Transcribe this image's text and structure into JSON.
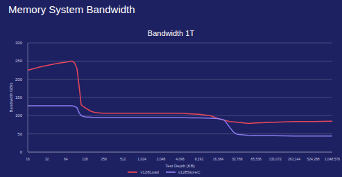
{
  "header": {
    "title": "Memory System Bandwidth"
  },
  "chart_data": {
    "type": "line",
    "title": "Bandwidth 1T",
    "x_label": "Test Depth (KB)",
    "y_label": "Bandwidth GB/s",
    "log": "x",
    "grid": true,
    "legend": "bottom",
    "x": [
      16,
      24,
      32,
      48,
      64,
      80,
      88,
      96,
      104,
      112,
      128,
      160,
      192,
      256,
      512,
      1024,
      2048,
      4096,
      6144,
      8192,
      12288,
      16384,
      20480,
      24576,
      28672,
      32768,
      49152,
      65536,
      131072,
      262144,
      524288,
      1048576
    ],
    "series": [
      {
        "name": "v128Load",
        "color": "#e8475a",
        "values": [
          225,
          233,
          238,
          244,
          247,
          250,
          245,
          230,
          180,
          130,
          122,
          112,
          108,
          107,
          107,
          107,
          107,
          107,
          105,
          104,
          100,
          92,
          88,
          84,
          83,
          82,
          79,
          80,
          82,
          84,
          84,
          85
        ]
      },
      {
        "name": "v128StoreC",
        "color": "#8b7cf0",
        "values": [
          127,
          127,
          127,
          127,
          127,
          127,
          126,
          122,
          108,
          100,
          97,
          96,
          95,
          95,
          95,
          95,
          95,
          95,
          94,
          94,
          93,
          92,
          88,
          70,
          55,
          49,
          46,
          45,
          45,
          44,
          44,
          44
        ]
      }
    ],
    "xlim": [
      16,
      1048576
    ],
    "xticks": [
      16,
      32,
      64,
      128,
      256,
      512,
      {
        "value": 1024,
        "label": "1,024"
      },
      {
        "value": 2048,
        "label": "2,048"
      },
      {
        "value": 4096,
        "label": "4,096"
      },
      {
        "value": 8192,
        "label": "8,192"
      },
      {
        "value": 16384,
        "label": "16,384"
      },
      {
        "value": 32768,
        "label": "32,768"
      },
      {
        "value": 65536,
        "label": "65,536"
      },
      {
        "value": 131072,
        "label": "131,072"
      },
      {
        "value": 262144,
        "label": "262,144"
      },
      {
        "value": 524288,
        "label": "524,288"
      },
      {
        "value": 1048576,
        "label": "1,048,576"
      }
    ],
    "ylim": [
      0,
      300
    ],
    "yticks": [
      0,
      50,
      100,
      150,
      200,
      250,
      300
    ]
  }
}
